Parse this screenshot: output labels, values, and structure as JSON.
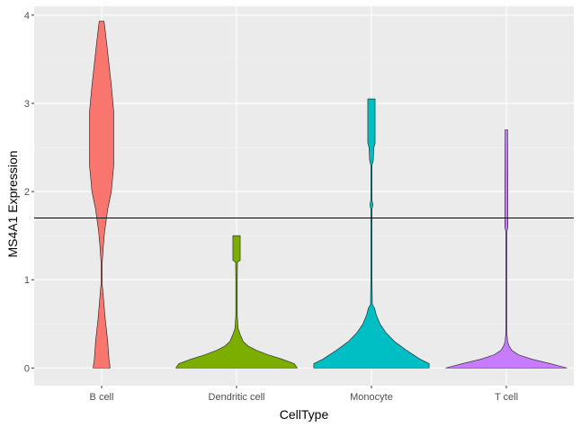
{
  "chart_data": {
    "type": "violin",
    "xlabel": "CellType",
    "ylabel": "MS4A1 Expression",
    "ylim": [
      -0.2,
      4.1
    ],
    "yticks": [
      0,
      1,
      2,
      3,
      4
    ],
    "grid": true,
    "reference_line": {
      "orientation": "horizontal",
      "y": 1.7,
      "color": "#000000"
    },
    "categories": [
      "B cell",
      "Dendritic cell",
      "Monocyte",
      "T cell"
    ],
    "colors": [
      "#F8766D",
      "#7CAE00",
      "#00BFC4",
      "#C77CFF"
    ],
    "violins": [
      {
        "category": "B cell",
        "y_min": 0,
        "y_max": 3.93,
        "profile": [
          [
            0,
            0.14
          ],
          [
            0.1,
            0.12
          ],
          [
            0.3,
            0.1
          ],
          [
            0.55,
            0.06
          ],
          [
            0.75,
            0.035
          ],
          [
            0.88,
            0.02
          ],
          [
            0.95,
            0.005
          ],
          [
            1.05,
            0.005
          ],
          [
            1.2,
            0.01
          ],
          [
            1.4,
            0.03
          ],
          [
            1.55,
            0.05
          ],
          [
            1.8,
            0.1
          ],
          [
            2.0,
            0.16
          ],
          [
            2.3,
            0.2
          ],
          [
            2.6,
            0.2
          ],
          [
            2.9,
            0.2
          ],
          [
            3.2,
            0.16
          ],
          [
            3.45,
            0.12
          ],
          [
            3.7,
            0.08
          ],
          [
            3.93,
            0.04
          ]
        ]
      },
      {
        "category": "Dendritic cell",
        "y_min": 0,
        "y_max": 1.5,
        "profile": [
          [
            0,
            1.0
          ],
          [
            0.05,
            0.95
          ],
          [
            0.1,
            0.75
          ],
          [
            0.15,
            0.52
          ],
          [
            0.2,
            0.33
          ],
          [
            0.25,
            0.19
          ],
          [
            0.3,
            0.11
          ],
          [
            0.38,
            0.06
          ],
          [
            0.45,
            0.025
          ],
          [
            0.6,
            0.012
          ],
          [
            0.8,
            0.012
          ],
          [
            1.0,
            0.012
          ],
          [
            1.2,
            0.015
          ],
          [
            1.22,
            0.06
          ],
          [
            1.35,
            0.06
          ],
          [
            1.5,
            0.06
          ]
        ]
      },
      {
        "category": "Monocyte",
        "y_min": 0,
        "y_max": 3.05,
        "profile": [
          [
            0,
            0.95
          ],
          [
            0.05,
            0.95
          ],
          [
            0.1,
            0.8
          ],
          [
            0.2,
            0.58
          ],
          [
            0.3,
            0.38
          ],
          [
            0.4,
            0.24
          ],
          [
            0.5,
            0.14
          ],
          [
            0.6,
            0.08
          ],
          [
            0.68,
            0.05
          ],
          [
            0.72,
            0.015
          ],
          [
            1.0,
            0.01
          ],
          [
            1.5,
            0.01
          ],
          [
            1.8,
            0.01
          ],
          [
            1.85,
            0.025
          ],
          [
            1.9,
            0.01
          ],
          [
            2.3,
            0.01
          ],
          [
            2.35,
            0.03
          ],
          [
            2.5,
            0.04
          ],
          [
            2.55,
            0.06
          ],
          [
            2.8,
            0.06
          ],
          [
            3.05,
            0.06
          ]
        ]
      },
      {
        "category": "T cell",
        "y_min": 0,
        "y_max": 2.7,
        "profile": [
          [
            0,
            1.0
          ],
          [
            0.05,
            0.72
          ],
          [
            0.1,
            0.42
          ],
          [
            0.15,
            0.2
          ],
          [
            0.2,
            0.09
          ],
          [
            0.25,
            0.045
          ],
          [
            0.3,
            0.02
          ],
          [
            0.4,
            0.008
          ],
          [
            1.0,
            0.008
          ],
          [
            1.55,
            0.01
          ],
          [
            1.6,
            0.025
          ],
          [
            2.2,
            0.025
          ],
          [
            2.7,
            0.02
          ]
        ]
      }
    ]
  }
}
